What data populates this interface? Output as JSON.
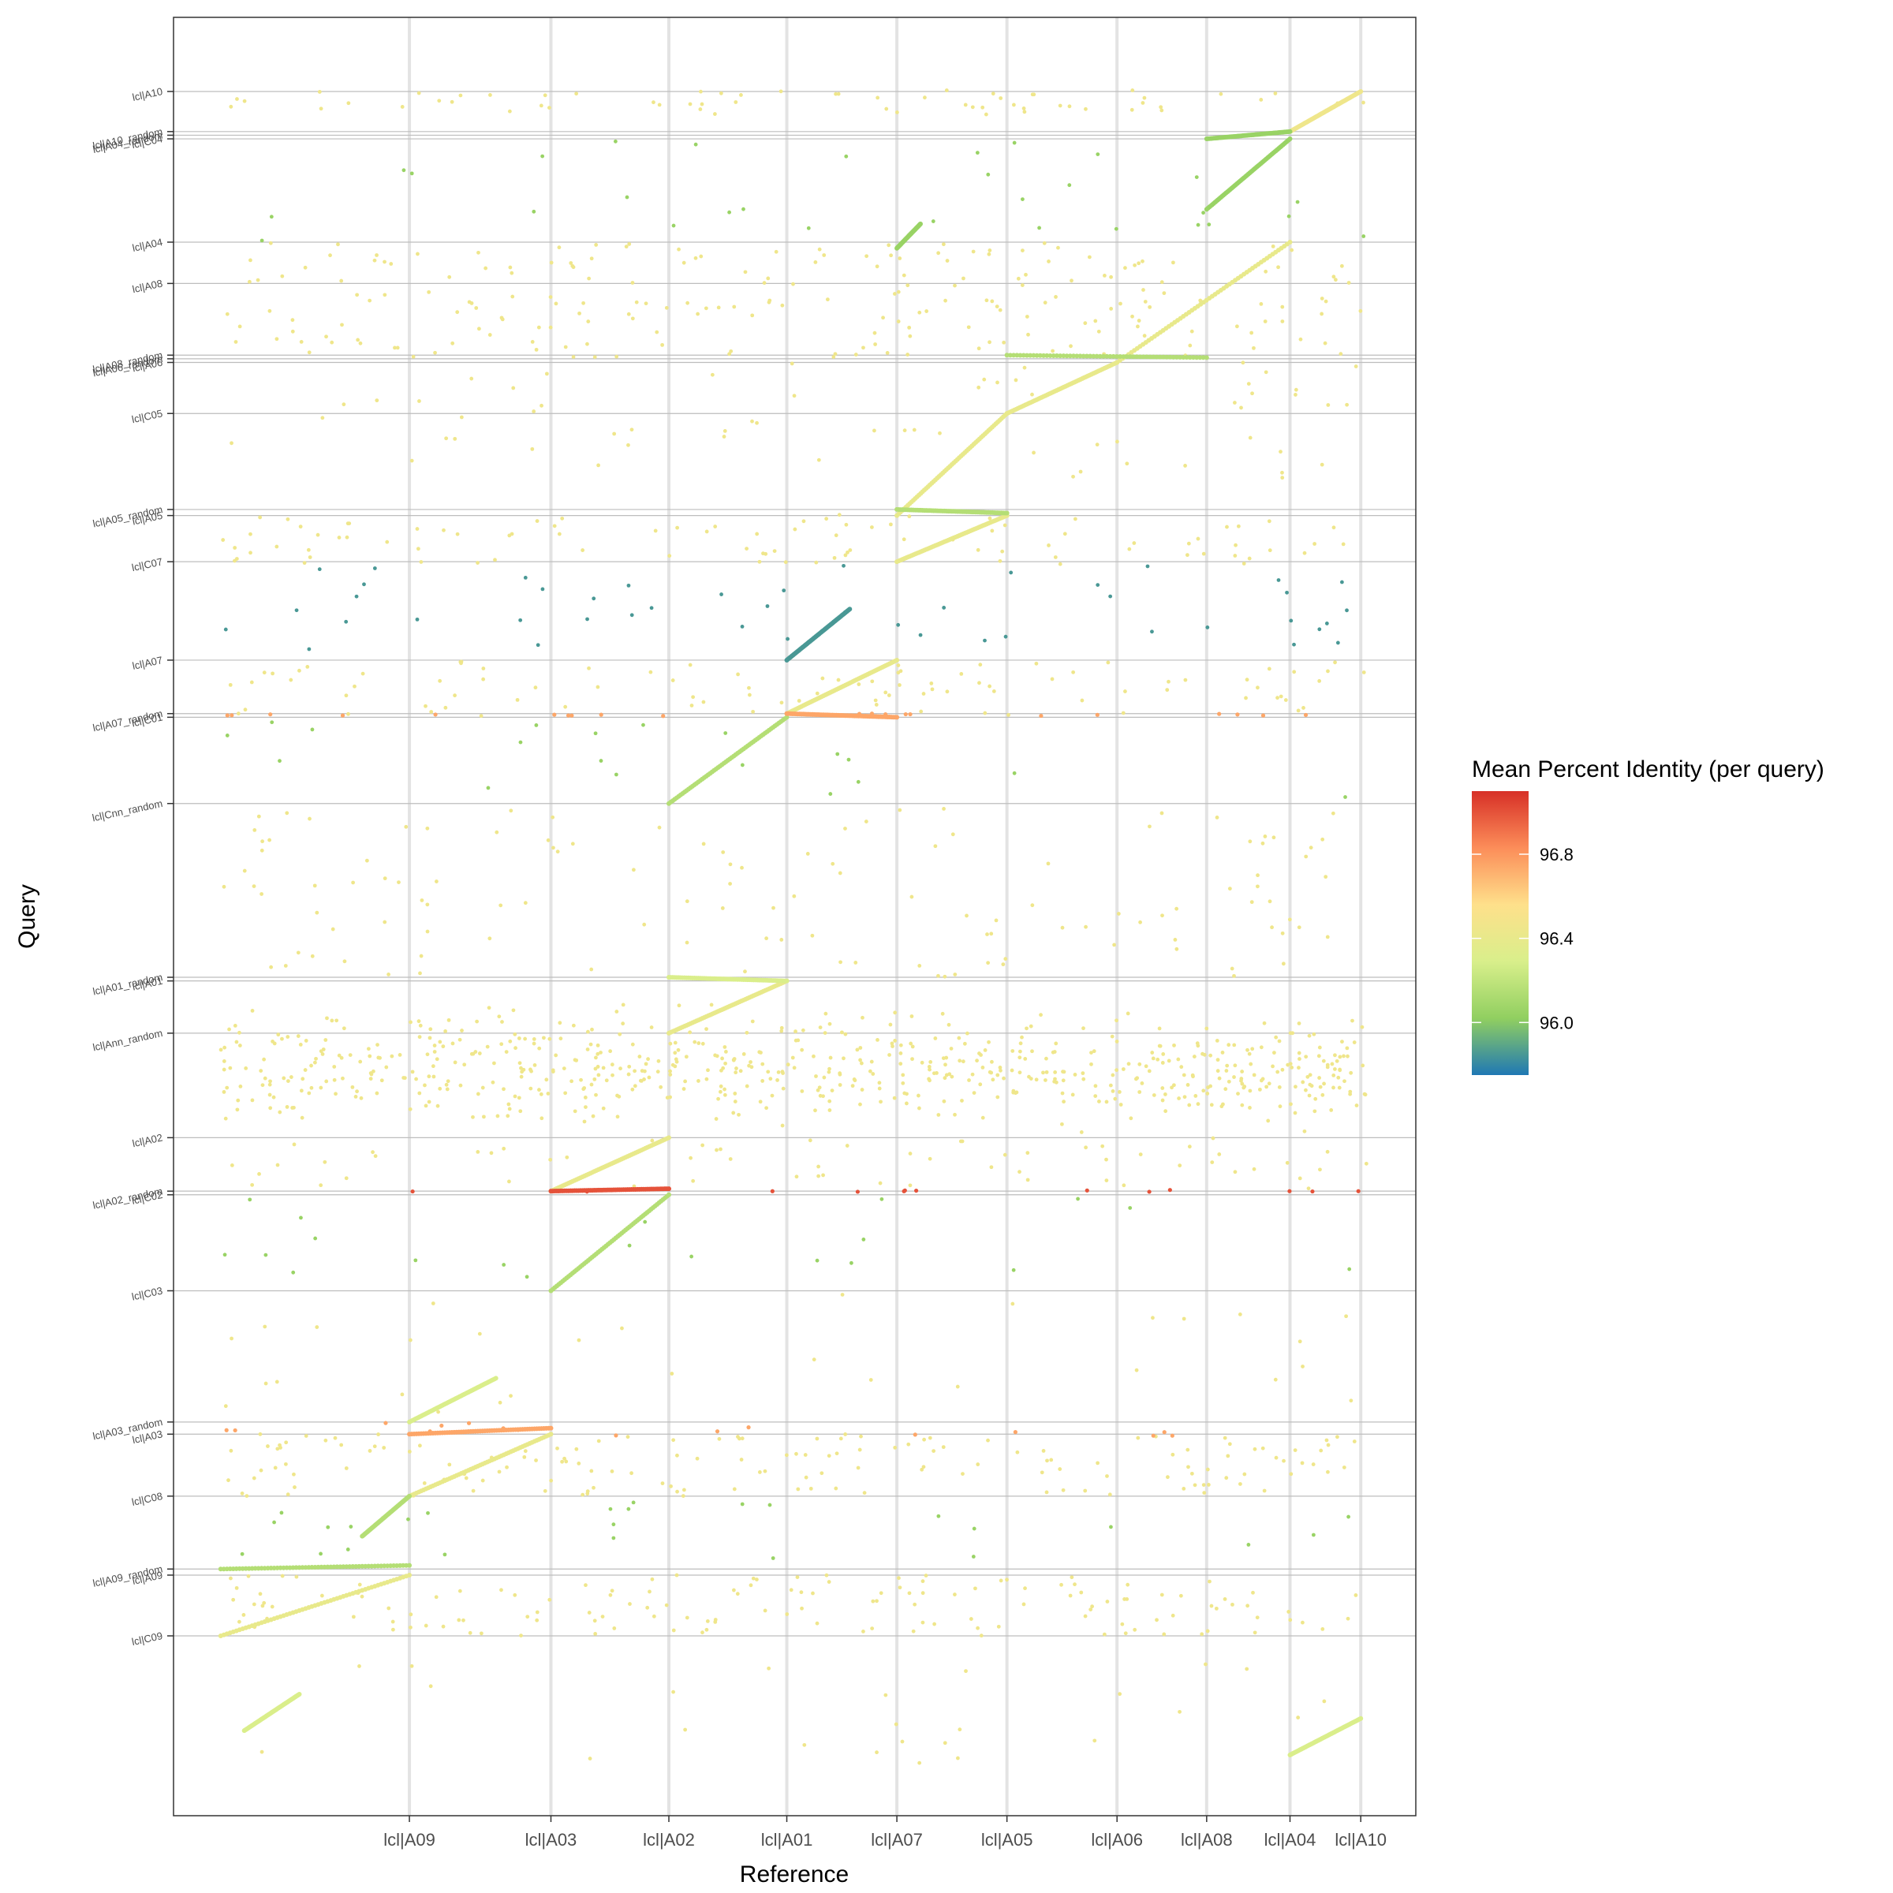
{
  "chart_data": {
    "type": "scatter",
    "xlabel": "Reference",
    "ylabel": "Query",
    "grid": true,
    "legend_position": "right",
    "x_categories": [
      "lcl|A09",
      "lcl|A03",
      "lcl|A02",
      "lcl|A01",
      "lcl|A07",
      "lcl|A05",
      "lcl|A06",
      "lcl|A08",
      "lcl|A04",
      "lcl|A10"
    ],
    "x_tick_values": [
      2.5,
      3.4,
      4.15,
      4.9,
      5.6,
      6.3,
      7.0,
      7.57,
      8.1,
      8.55
    ],
    "xlim": [
      1.0,
      8.9
    ],
    "ylim": [
      0,
      14.8
    ],
    "y_categories": [
      {
        "label": "lcl|A10",
        "y": 14.19
      },
      {
        "label": "lcl|A10_random",
        "y": 13.86
      },
      {
        "label": "lcl|A04_random",
        "y": 13.83
      },
      {
        "label": "lcl|C04",
        "y": 13.8
      },
      {
        "label": "lcl|A04",
        "y": 12.95
      },
      {
        "label": "lcl|A08",
        "y": 12.61
      },
      {
        "label": "lcl|A08_random",
        "y": 12.02
      },
      {
        "label": "lcl|A06_random",
        "y": 11.99
      },
      {
        "label": "lcl|A06",
        "y": 11.96
      },
      {
        "label": "lcl|C05",
        "y": 11.54
      },
      {
        "label": "lcl|A05_random",
        "y": 10.75
      },
      {
        "label": "lcl|A05",
        "y": 10.7
      },
      {
        "label": "lcl|C07",
        "y": 10.32
      },
      {
        "label": "lcl|A07",
        "y": 9.51
      },
      {
        "label": "lcl|A07_random",
        "y": 9.07
      },
      {
        "label": "lcl|C01",
        "y": 9.04
      },
      {
        "label": "lcl|Cnn_random",
        "y": 8.33
      },
      {
        "label": "lcl|A01_random",
        "y": 6.9
      },
      {
        "label": "lcl|A01",
        "y": 6.87
      },
      {
        "label": "lcl|Ann_random",
        "y": 6.44
      },
      {
        "label": "lcl|A02",
        "y": 5.58
      },
      {
        "label": "lcl|A02_random",
        "y": 5.14
      },
      {
        "label": "lcl|C02",
        "y": 5.11
      },
      {
        "label": "lcl|C03",
        "y": 4.32
      },
      {
        "label": "lcl|A03_random",
        "y": 3.24
      },
      {
        "label": "lcl|A03",
        "y": 3.14
      },
      {
        "label": "lcl|C08",
        "y": 2.63
      },
      {
        "label": "lcl|A09_random",
        "y": 2.03
      },
      {
        "label": "lcl|A09",
        "y": 1.98
      },
      {
        "label": "lcl|C09",
        "y": 1.48
      }
    ],
    "legend": {
      "title": "Mean Percent Identity (per query)",
      "ticks": [
        96.8,
        96.4,
        96.0
      ],
      "range": [
        95.75,
        97.1
      ],
      "colors": [
        "#d73027",
        "#fc8d59",
        "#fee08b",
        "#d9ef8b",
        "#91cf60",
        "#1f78b4"
      ]
    },
    "series": [
      {
        "identity": 96.45,
        "segments": [
          [
            8.1,
            13.86,
            8.55,
            14.19
          ]
        ]
      },
      {
        "identity": 96.05,
        "segments": [
          [
            7.57,
            13.8,
            8.1,
            13.86
          ],
          [
            7.57,
            13.22,
            8.1,
            13.8
          ],
          [
            5.6,
            12.9,
            5.75,
            13.1
          ]
        ]
      },
      {
        "identity": 96.4,
        "segments": [
          [
            7.0,
            11.96,
            8.1,
            12.95
          ],
          [
            6.3,
            11.54,
            7.0,
            11.96
          ],
          [
            5.6,
            10.7,
            6.3,
            11.54
          ],
          [
            5.6,
            10.32,
            6.3,
            10.7
          ],
          [
            4.9,
            9.07,
            5.6,
            9.51
          ],
          [
            4.15,
            6.44,
            4.9,
            6.87
          ],
          [
            3.4,
            5.14,
            4.15,
            5.58
          ],
          [
            1.3,
            1.48,
            2.5,
            1.98
          ],
          [
            2.5,
            2.63,
            3.4,
            3.14
          ]
        ]
      },
      {
        "identity": 96.15,
        "segments": [
          [
            6.3,
            12.02,
            7.57,
            12.0
          ],
          [
            5.6,
            10.75,
            6.3,
            10.72
          ],
          [
            4.15,
            8.33,
            4.9,
            9.04
          ],
          [
            3.4,
            4.32,
            4.15,
            5.11
          ],
          [
            2.2,
            2.3,
            2.5,
            2.63
          ],
          [
            1.3,
            2.03,
            2.5,
            2.06
          ]
        ]
      },
      {
        "identity": 96.3,
        "segments": [
          [
            2.5,
            3.24,
            3.05,
            3.6
          ],
          [
            1.45,
            0.7,
            1.8,
            1.0
          ],
          [
            8.1,
            0.5,
            8.55,
            0.8
          ],
          [
            4.15,
            6.9,
            4.9,
            6.87
          ]
        ]
      },
      {
        "identity": 96.75,
        "segments": [
          [
            4.9,
            9.07,
            5.6,
            9.04
          ],
          [
            2.5,
            3.14,
            3.4,
            3.19
          ]
        ]
      },
      {
        "identity": 97.0,
        "segments": [
          [
            3.4,
            5.14,
            4.15,
            5.16
          ]
        ]
      },
      {
        "identity": 95.85,
        "segments": [
          [
            4.9,
            9.51,
            5.3,
            9.93
          ]
        ]
      }
    ]
  }
}
